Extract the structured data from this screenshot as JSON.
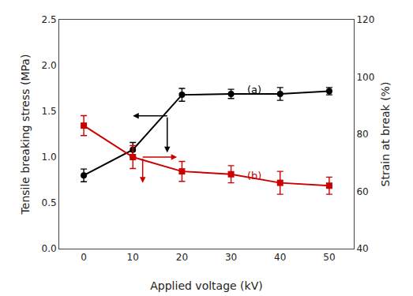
{
  "chart_data": {
    "type": "line",
    "x_label": "Applied voltage (kV)",
    "y_label": "Tensile breaking stress (MPa)",
    "y2_label": "Strain at break (%)",
    "x": [
      0,
      10,
      20,
      30,
      40,
      50
    ],
    "xlim": [
      -5,
      55
    ],
    "xticks": [
      0,
      10,
      20,
      30,
      40,
      50
    ],
    "ylim": [
      0.0,
      2.5
    ],
    "yticks": [
      {
        "value": 0.0,
        "label": "0.0"
      },
      0.5,
      {
        "value": 1.0,
        "label": "1.0"
      },
      1.5,
      {
        "value": 2.0,
        "label": "2.0"
      },
      2.5
    ],
    "y2lim": [
      40,
      120
    ],
    "y2ticks": [
      40,
      60,
      80,
      100,
      120
    ],
    "grid": false,
    "series": [
      {
        "color": "#000000",
        "marker": "circle",
        "values": [
          0.8,
          1.08,
          1.68,
          1.69,
          1.69,
          1.72
        ],
        "errors": [
          0.07,
          0.08,
          0.07,
          0.05,
          0.07,
          0.04
        ]
      },
      {
        "color": "#cc0000",
        "marker": "square",
        "axis": "y2",
        "values": [
          83,
          72,
          67,
          66,
          63,
          62
        ],
        "errors": [
          3.5,
          4.0,
          3.5,
          3.0,
          4.0,
          3.0
        ]
      }
    ],
    "annotations": [
      "(a)",
      "(b)"
    ]
  }
}
